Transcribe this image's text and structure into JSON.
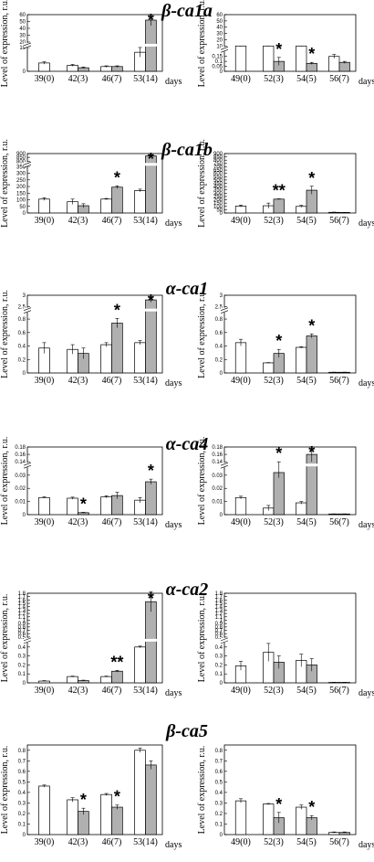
{
  "units_label": "days",
  "ylabel": "Level of expression, r.u.",
  "ylabel_short": "Level of expression,",
  "colors": {
    "white_bar": "#ffffff",
    "gray_bar": "#b0b0b0",
    "axis": "#000000"
  },
  "chart_data": [
    {
      "gene": "β-ca1a",
      "panel": "left",
      "type": "bar",
      "ylabel": "Level of expression, r.u.",
      "categories": [
        "39(0)",
        "42(3)",
        "46(7)",
        "53(14)"
      ],
      "series": [],
      "white": [
        3.5,
        2.5,
        2,
        8
      ],
      "gray": [
        null,
        1.5,
        2,
        52
      ],
      "white_err": [
        0.5,
        0.4,
        0.3,
        2
      ],
      "gray_err": [
        0,
        0.3,
        0.3,
        8
      ],
      "stars": [
        "",
        "",
        "",
        "*"
      ],
      "yticks": [
        0,
        10,
        20,
        30,
        40,
        50,
        60
      ],
      "ylim": [
        0,
        60
      ],
      "break": {
        "at": 10,
        "frac": 0.42
      }
    },
    {
      "gene": "β-ca1a",
      "panel": "right",
      "type": "bar",
      "ylabel": "Level of expression, r.u.",
      "categories": [
        "49(0)",
        "52(3)",
        "54(5)",
        "56(7)"
      ],
      "white": [
        3.5,
        1.2,
        1.5,
        0.15
      ],
      "gray": [
        null,
        0.1,
        0.08,
        0.09
      ],
      "white_err": [
        0.2,
        0.05,
        0.05,
        0.02
      ],
      "gray_err": [
        0,
        0.04,
        0.01,
        0.01
      ],
      "stars": [
        "",
        "*",
        "*",
        ""
      ],
      "yticks": [
        0,
        0.05,
        0.1,
        0.15,
        10,
        20,
        30,
        40,
        50,
        60
      ],
      "ylim": [
        0,
        60
      ],
      "break": {
        "at": 0.2,
        "frac": 0.35
      }
    },
    {
      "gene": "β-ca1b",
      "panel": "left",
      "type": "bar",
      "ylabel": "Level of expression, r.u.",
      "categories": [
        "39(0)",
        "42(3)",
        "46(7)",
        "53(14)"
      ],
      "white": [
        105,
        85,
        105,
        170
      ],
      "gray": [
        null,
        55,
        195,
        870
      ],
      "white_err": [
        10,
        20,
        5,
        10
      ],
      "gray_err": [
        0,
        15,
        10,
        15
      ],
      "stars": [
        "",
        "",
        "*",
        "*"
      ],
      "yticks": [
        0,
        50,
        100,
        150,
        200,
        250,
        300,
        350,
        800,
        850,
        900
      ],
      "ylim": [
        0,
        900
      ],
      "break": {
        "at": 350,
        "frac": 0.78
      }
    },
    {
      "gene": "β-ca1b",
      "panel": "right",
      "type": "bar",
      "ylabel": "Level of expression, r.u.",
      "categories": [
        "49(0)",
        "52(3)",
        "54(5)",
        "56(7)"
      ],
      "white": [
        105,
        110,
        100,
        10
      ],
      "gray": [
        null,
        210,
        345,
        8
      ],
      "white_err": [
        15,
        40,
        15,
        3
      ],
      "gray_err": [
        0,
        5,
        60,
        2
      ],
      "stars": [
        "",
        "**",
        "*",
        ""
      ],
      "yticks": [
        0,
        50,
        100,
        150,
        200,
        250,
        300,
        350,
        400,
        450,
        500,
        550,
        600,
        650,
        700,
        750,
        800,
        850,
        900
      ],
      "ylim": [
        0,
        900
      ],
      "break": null
    },
    {
      "gene": "α-ca1",
      "panel": "left",
      "type": "bar",
      "ylabel": "Level of expression, r.u.",
      "categories": [
        "39(0)",
        "42(3)",
        "46(7)",
        "53(14)"
      ],
      "white": [
        0.37,
        0.35,
        0.42,
        0.45
      ],
      "gray": [
        null,
        0.29,
        0.74,
        2.8
      ],
      "white_err": [
        0.08,
        0.07,
        0.03,
        0.03
      ],
      "gray_err": [
        0,
        0.08,
        0.07,
        0.1
      ],
      "stars": [
        "",
        "",
        "*",
        "*"
      ],
      "yticks": [
        0,
        0.2,
        0.4,
        0.6,
        0.8,
        2.5,
        3.0
      ],
      "ylim": [
        0,
        3.0
      ],
      "break": {
        "at": 0.9,
        "frac": 0.78
      }
    },
    {
      "gene": "α-ca1",
      "panel": "right",
      "type": "bar",
      "ylabel": "Level of expression, r.u.",
      "categories": [
        "49(0)",
        "52(3)",
        "54(5)",
        "56(7)"
      ],
      "white": [
        0.45,
        0.15,
        0.38,
        0.01
      ],
      "gray": [
        null,
        0.29,
        0.55,
        0.01
      ],
      "white_err": [
        0.05,
        0.005,
        0.01,
        0.002
      ],
      "gray_err": [
        0,
        0.06,
        0.03,
        0.002
      ],
      "stars": [
        "",
        "*",
        "*",
        ""
      ],
      "yticks": [
        0,
        0.2,
        0.4,
        0.6,
        0.8,
        2.5,
        3.0
      ],
      "ylim": [
        0,
        3.0
      ],
      "break": {
        "at": 0.9,
        "frac": 0.78
      }
    },
    {
      "gene": "α-ca4",
      "panel": "left",
      "type": "bar",
      "ylabel": "Level of expression, r.u.",
      "categories": [
        "39(0)",
        "42(3)",
        "46(7)",
        "53(14)"
      ],
      "white": [
        0.013,
        0.0125,
        0.0135,
        0.011
      ],
      "gray": [
        null,
        0.0015,
        0.0145,
        0.025
      ],
      "white_err": [
        0.0005,
        0.0008,
        0.0008,
        0.002
      ],
      "gray_err": [
        0,
        0.0003,
        0.0025,
        0.002
      ],
      "stars": [
        "",
        "*",
        "",
        "*"
      ],
      "yticks": [
        0,
        0.01,
        0.02,
        0.03,
        0.14,
        0.16,
        0.18
      ],
      "ylim": [
        0,
        0.18
      ],
      "break": {
        "at": 0.036,
        "frac": 0.7
      }
    },
    {
      "gene": "α-ca4",
      "panel": "right",
      "type": "bar",
      "ylabel": "Level of expression, r.u.",
      "categories": [
        "49(0)",
        "52(3)",
        "54(5)",
        "56(7)"
      ],
      "white": [
        0.013,
        0.005,
        0.009,
        0.0005
      ],
      "gray": [
        null,
        0.032,
        0.16,
        0.0005
      ],
      "white_err": [
        0.001,
        0.002,
        0.001,
        0.0001
      ],
      "gray_err": [
        0,
        0.004,
        0.02,
        0.0001
      ],
      "stars": [
        "",
        "*",
        "*",
        ""
      ],
      "yticks": [
        0,
        0.01,
        0.02,
        0.03,
        0.14,
        0.16,
        0.18
      ],
      "ylim": [
        0,
        0.18
      ],
      "break": {
        "at": 0.036,
        "frac": 0.7
      }
    },
    {
      "gene": "α-ca2",
      "panel": "left",
      "type": "bar",
      "ylabel": "Level of expression, r.u.",
      "categories": [
        "39(0)",
        "42(3)",
        "46(7)",
        "53(14)"
      ],
      "white": [
        0.02,
        0.07,
        0.07,
        0.4
      ],
      "gray": [
        null,
        0.025,
        0.13,
        1.55
      ],
      "white_err": [
        0.005,
        0.005,
        0.005,
        0.01
      ],
      "gray_err": [
        0,
        0.005,
        0.01,
        0.3
      ],
      "stars": [
        "",
        "",
        "**",
        "*"
      ],
      "yticks": [
        0,
        0.1,
        0.2,
        0.3,
        0.4,
        0.5,
        0.6,
        0.7,
        0.8,
        0.9,
        1.0,
        1.1,
        1.2,
        1.3,
        1.4,
        1.5,
        1.6,
        1.7,
        1.8
      ],
      "ylim": [
        0,
        1.8
      ],
      "break": {
        "at": 0.45,
        "frac": 0.45
      }
    },
    {
      "gene": "α-ca2",
      "panel": "right",
      "type": "bar",
      "ylabel": "Level of expression, r.u.",
      "categories": [
        "49(0)",
        "52(3)",
        "54(5)",
        "56(7)"
      ],
      "white": [
        0.19,
        0.34,
        0.25,
        0.005
      ],
      "gray": [
        null,
        0.23,
        0.2,
        0.005
      ],
      "white_err": [
        0.05,
        0.1,
        0.07,
        0.001
      ],
      "gray_err": [
        0,
        0.07,
        0.07,
        0.001
      ],
      "stars": [
        "",
        "",
        "",
        ""
      ],
      "yticks": [
        0,
        0.1,
        0.2,
        0.3,
        0.4,
        0.5,
        0.6,
        0.7,
        0.8,
        0.9,
        1.0,
        1.1,
        1.2,
        1.3,
        1.4,
        1.5,
        1.6,
        1.7,
        1.8
      ],
      "ylim": [
        0,
        1.8
      ],
      "break": {
        "at": 0.45,
        "frac": 0.45
      }
    },
    {
      "gene": "β-ca5",
      "panel": "left",
      "type": "bar",
      "ylabel": "Level of expression, r.u.",
      "categories": [
        "39(0)",
        "42(3)",
        "46(7)",
        "53(14)"
      ],
      "white": [
        0.46,
        0.33,
        0.38,
        0.8
      ],
      "gray": [
        null,
        0.22,
        0.26,
        0.66
      ],
      "white_err": [
        0.01,
        0.02,
        0.01,
        0.02
      ],
      "gray_err": [
        0,
        0.03,
        0.02,
        0.04
      ],
      "stars": [
        "",
        "*",
        "*",
        ""
      ],
      "yticks": [
        0,
        0.1,
        0.2,
        0.3,
        0.4,
        0.5,
        0.6,
        0.7,
        0.8
      ],
      "ylim": [
        0,
        0.85
      ],
      "break": null
    },
    {
      "gene": "β-ca5",
      "panel": "right",
      "type": "bar",
      "ylabel": "Level of expression, r.u.",
      "categories": [
        "49(0)",
        "52(3)",
        "54(5)",
        "56(7)"
      ],
      "white": [
        0.32,
        0.29,
        0.26,
        0.02
      ],
      "gray": [
        null,
        0.16,
        0.16,
        0.02
      ],
      "white_err": [
        0.02,
        0.005,
        0.02,
        0.005
      ],
      "gray_err": [
        0,
        0.05,
        0.02,
        0.005
      ],
      "stars": [
        "",
        "*",
        "*",
        ""
      ],
      "yticks": [
        0,
        0.1,
        0.2,
        0.3,
        0.4,
        0.5,
        0.6,
        0.7,
        0.8
      ],
      "ylim": [
        0,
        0.85
      ],
      "break": null
    }
  ]
}
